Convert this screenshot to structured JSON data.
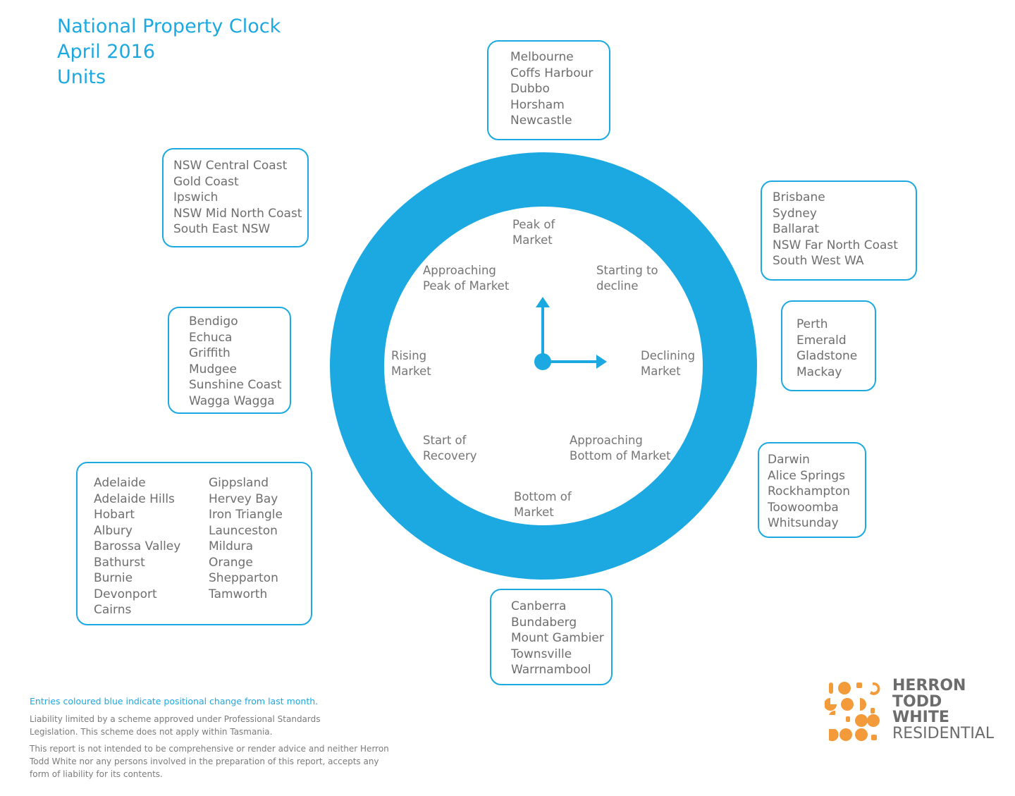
{
  "title": {
    "line1": "National Property Clock",
    "line2": "April 2016",
    "line3": "Units"
  },
  "phases": {
    "peak": "Peak of\nMarket",
    "starting_decline": "Starting to\ndecline",
    "declining": "Declining\nMarket",
    "approaching_bottom": "Approaching\nBottom of Market",
    "bottom": "Bottom of\nMarket",
    "start_recovery": "Start of\nRecovery",
    "rising": "Rising\nMarket",
    "approaching_peak": "Approaching\nPeak of Market"
  },
  "boxes": {
    "peak": [
      "Melbourne",
      "Coffs Harbour",
      "Dubbo",
      "Horsham",
      "Newcastle"
    ],
    "starting_decline": [
      "Brisbane",
      "Sydney",
      "Ballarat",
      "NSW Far North Coast",
      "South West WA"
    ],
    "declining": [
      "Perth",
      "Emerald",
      "Gladstone",
      "Mackay"
    ],
    "approaching_bottom": [
      "Darwin",
      "Alice Springs",
      "Rockhampton",
      "Toowoomba",
      "Whitsunday"
    ],
    "bottom": [
      "Canberra",
      "Bundaberg",
      "Mount Gambier",
      "Townsville",
      "Warrnambool"
    ],
    "start_recovery_col1": [
      "Adelaide",
      "Adelaide Hills",
      "Hobart",
      "Albury",
      "Barossa Valley",
      "Bathurst",
      "Burnie",
      "Devonport",
      "Cairns"
    ],
    "start_recovery_col2": [
      "Gippsland",
      "Hervey Bay",
      "Iron Triangle",
      "Launceston",
      "Mildura",
      "Orange",
      "Shepparton",
      "Tamworth"
    ],
    "rising": [
      "Bendigo",
      "Echuca",
      "Griffith",
      "Mudgee",
      "Sunshine Coast",
      "Wagga Wagga"
    ],
    "approaching_peak": [
      "NSW Central Coast",
      "Gold Coast",
      "Ipswich",
      "NSW Mid North Coast",
      "South East NSW"
    ]
  },
  "footer": {
    "note_blue": "Entries coloured blue indicate positional change from last month.",
    "liability": "Liability limited by a scheme approved under Professional Standards Legislation. This scheme does not apply within Tasmania.",
    "disclaimer": "This report is not intended to be comprehensive or render advice and neither Herron Todd White nor any persons involved in the preparation of this report, accepts any form of liability for its contents."
  },
  "logo": {
    "line1": "HERRON",
    "line2": "TODD",
    "line3": "WHITE",
    "line4": "RESIDENTIAL"
  },
  "colors": {
    "accent": "#1ca9e1",
    "logo_orange": "#f39a3a",
    "text_gray": "#6e6e6e"
  },
  "icons": {
    "clock_hands": "clock-hands-icon",
    "logo_mark": "herron-todd-white-logo-icon"
  }
}
